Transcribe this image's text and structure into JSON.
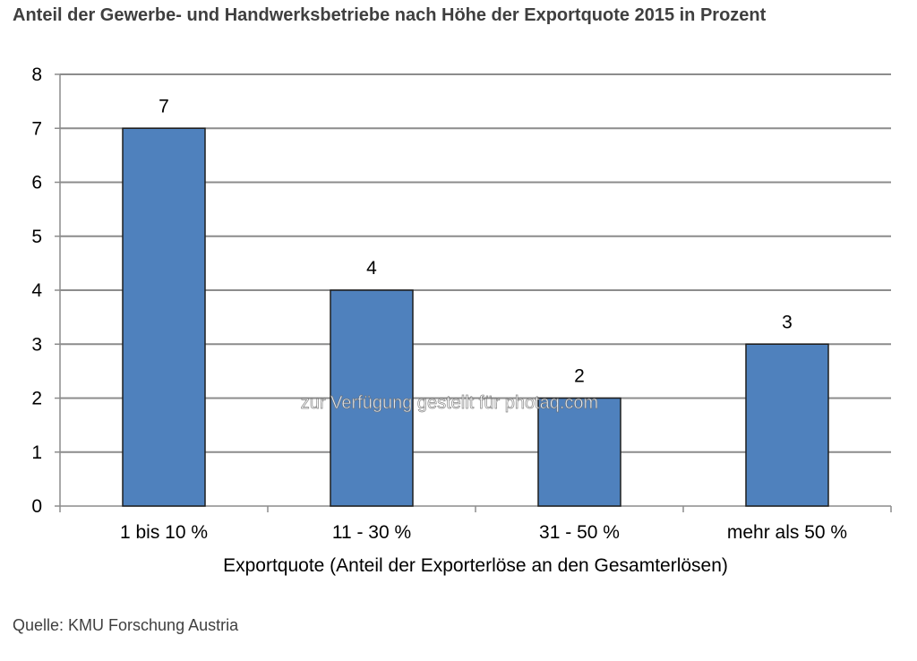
{
  "chart_data": {
    "type": "bar",
    "title": "Anteil der Gewerbe- und Handwerksbetriebe nach Höhe der Exportquote 2015 in Prozent",
    "categories": [
      "1 bis 10 %",
      "11 - 30 %",
      "31 - 50 %",
      "mehr als 50 %"
    ],
    "values": [
      7,
      4,
      2,
      3
    ],
    "data_labels": [
      "7",
      "4",
      "2",
      "3"
    ],
    "xlabel": "Exportquote (Anteil der Exporterlöse an den Gesamterlösen)",
    "ylabel": "",
    "ylim": [
      0,
      8
    ],
    "yticks": [
      "0",
      "1",
      "2",
      "3",
      "4",
      "5",
      "6",
      "7",
      "8"
    ],
    "grid": true,
    "legend": "none",
    "bar_color": "#4f81bd",
    "bar_edge_color": "#1f1f1f",
    "grid_color": "#8c8c8c"
  },
  "watermark": "zur Verfügung gestellt für photaq.com",
  "source": "Quelle: KMU Forschung Austria"
}
